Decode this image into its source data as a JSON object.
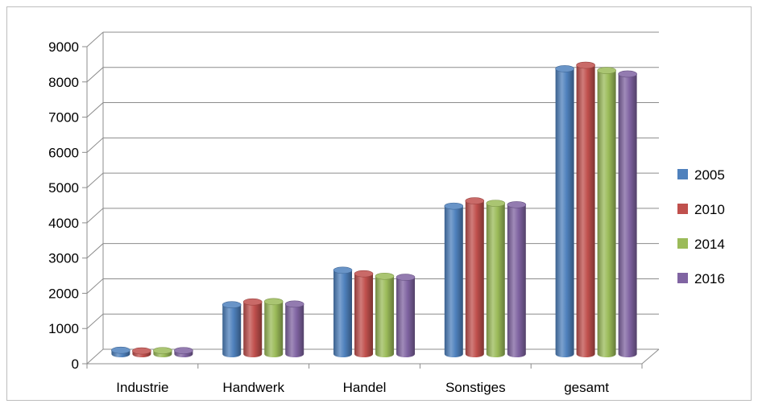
{
  "chart_data": {
    "type": "bar",
    "style": "3d-cylinder-clustered",
    "categories": [
      "Industrie",
      "Handwerk",
      "Handel",
      "Sonstiges",
      "gesamt"
    ],
    "series": [
      {
        "name": "2005",
        "color": "#4f81bd",
        "values": [
          110,
          1400,
          2380,
          4200,
          8100
        ]
      },
      {
        "name": "2010",
        "color": "#c0504d",
        "values": [
          90,
          1480,
          2280,
          4350,
          8200
        ]
      },
      {
        "name": "2014",
        "color": "#9bbb59",
        "values": [
          100,
          1490,
          2210,
          4280,
          8050
        ]
      },
      {
        "name": "2016",
        "color": "#8064a2",
        "values": [
          100,
          1420,
          2180,
          4240,
          7950
        ]
      }
    ],
    "y_ticks": [
      "0",
      "1000",
      "2000",
      "3000",
      "4000",
      "5000",
      "6000",
      "7000",
      "8000",
      "9000"
    ],
    "ylim": [
      0,
      9000
    ],
    "grid": true,
    "legend_position": "right"
  }
}
